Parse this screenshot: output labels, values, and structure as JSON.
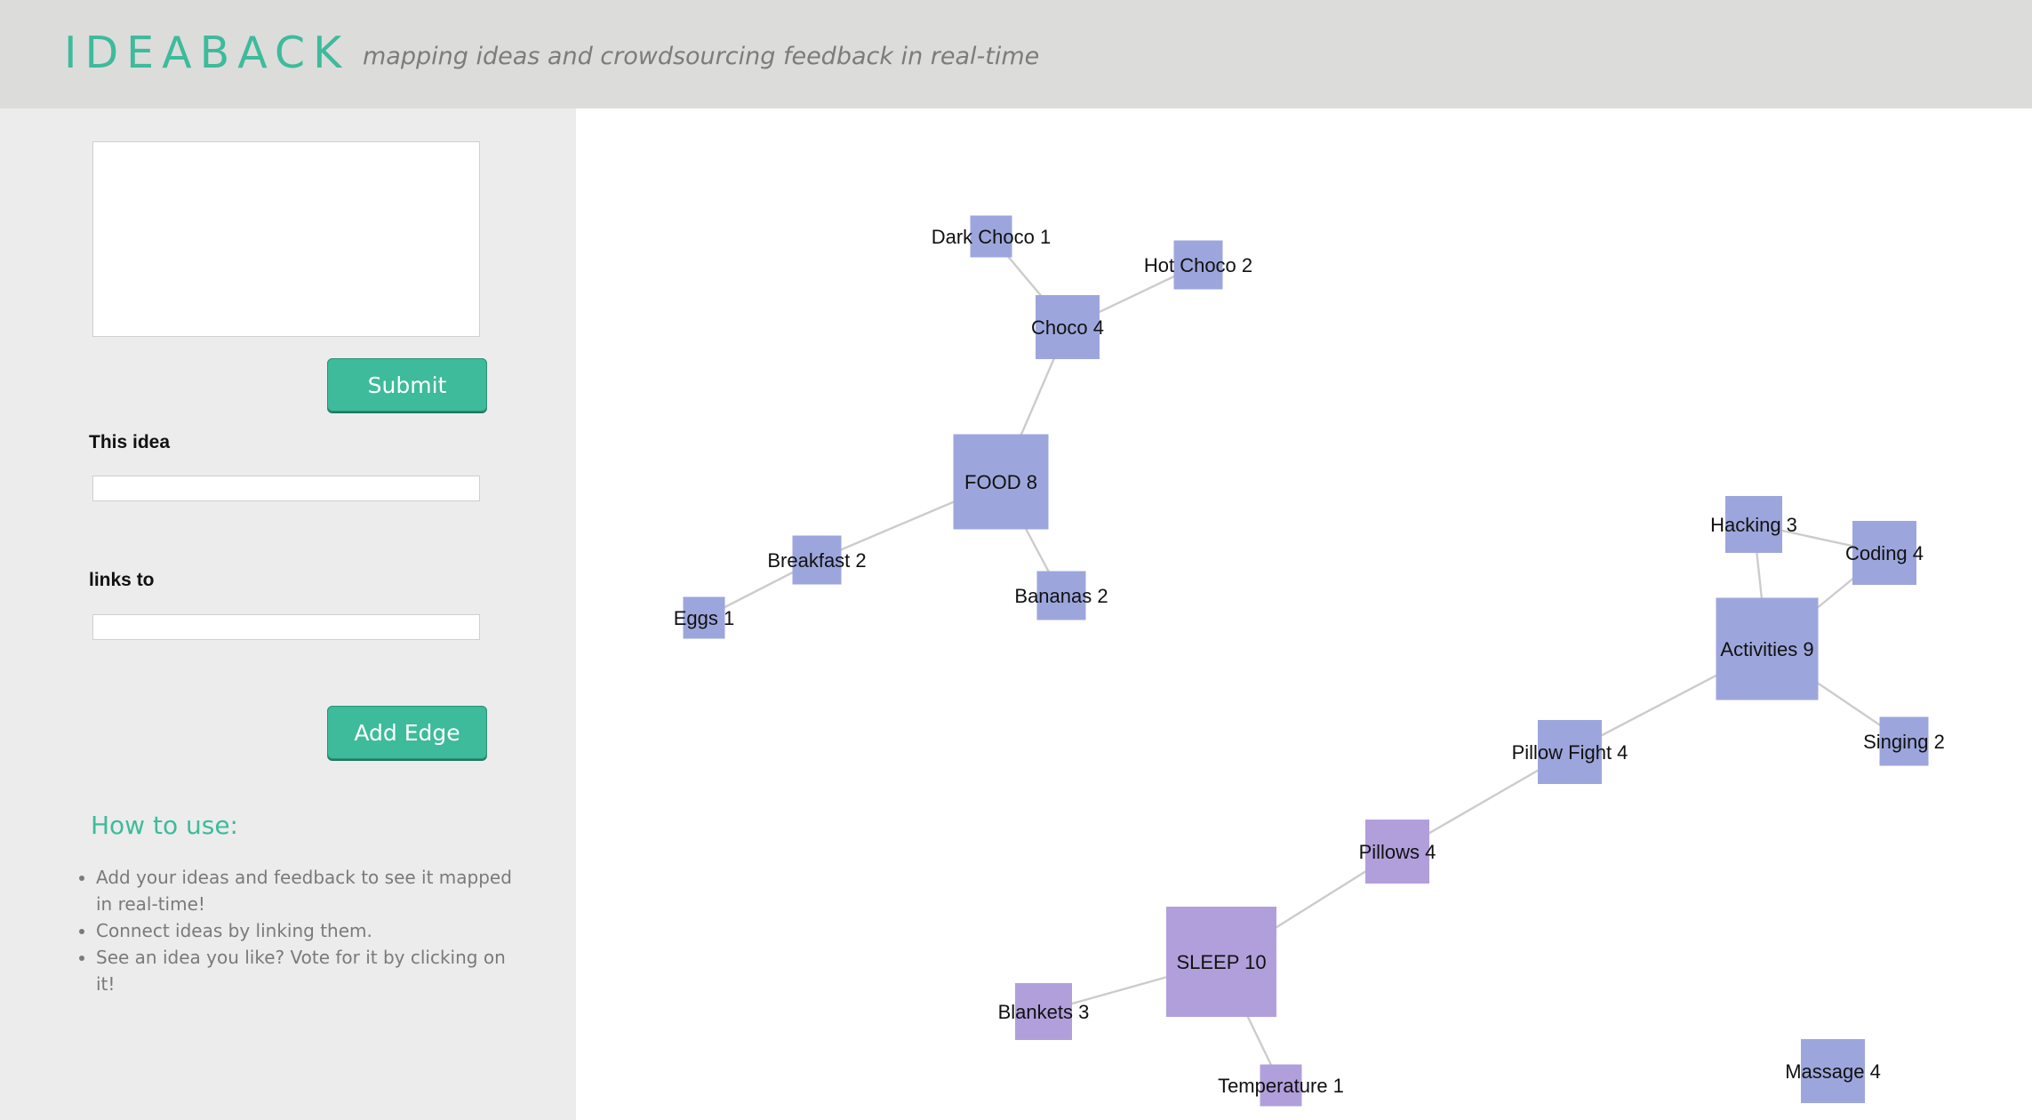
{
  "header": {
    "brand": "IDEABACK",
    "tagline": "mapping ideas and crowdsourcing feedback in real-time"
  },
  "sidebar": {
    "idea_text_value": "",
    "submit_label": "Submit",
    "this_idea_label": "This idea",
    "this_idea_value": "",
    "links_to_label": "links to",
    "links_to_value": "",
    "add_edge_label": "Add Edge",
    "howto_title": "How to use:",
    "howto_items": [
      "Add your ideas and feedback to see it mapped in real-time!",
      "Connect ideas by linking them.",
      "See an idea you like? Vote for it by clicking on it!"
    ]
  },
  "colors": {
    "accent": "#3dbb9b",
    "node_food_group": "#9da6dc",
    "node_sleep_group": "#b19fdc",
    "edge": "#cccccc"
  },
  "graph": {
    "nodes": [
      {
        "id": "food",
        "label": "FOOD 8",
        "votes": 8,
        "group": "food"
      },
      {
        "id": "choco",
        "label": "Choco 4",
        "votes": 4,
        "group": "food"
      },
      {
        "id": "darkchoco",
        "label": "Dark Choco 1",
        "votes": 1,
        "group": "food"
      },
      {
        "id": "hotchoco",
        "label": "Hot Choco 2",
        "votes": 2,
        "group": "food"
      },
      {
        "id": "breakfast",
        "label": "Breakfast 2",
        "votes": 2,
        "group": "food"
      },
      {
        "id": "eggs",
        "label": "Eggs 1",
        "votes": 1,
        "group": "food"
      },
      {
        "id": "bananas",
        "label": "Bananas 2",
        "votes": 2,
        "group": "food"
      },
      {
        "id": "activities",
        "label": "Activities 9",
        "votes": 9,
        "group": "food"
      },
      {
        "id": "hacking",
        "label": "Hacking 3",
        "votes": 3,
        "group": "food"
      },
      {
        "id": "coding",
        "label": "Coding 4",
        "votes": 4,
        "group": "food"
      },
      {
        "id": "singing",
        "label": "Singing 2",
        "votes": 2,
        "group": "food"
      },
      {
        "id": "pillowfight",
        "label": "Pillow Fight 4",
        "votes": 4,
        "group": "food"
      },
      {
        "id": "pillows",
        "label": "Pillows 4",
        "votes": 4,
        "group": "sleep"
      },
      {
        "id": "sleep",
        "label": "SLEEP 10",
        "votes": 10,
        "group": "sleep"
      },
      {
        "id": "blankets",
        "label": "Blankets 3",
        "votes": 3,
        "group": "sleep"
      },
      {
        "id": "temperature",
        "label": "Temperature 1",
        "votes": 1,
        "group": "sleep"
      },
      {
        "id": "massage",
        "label": "Massage 4",
        "votes": 4,
        "group": "food"
      }
    ],
    "edges": [
      [
        "darkchoco",
        "choco"
      ],
      [
        "hotchoco",
        "choco"
      ],
      [
        "choco",
        "food"
      ],
      [
        "food",
        "breakfast"
      ],
      [
        "breakfast",
        "eggs"
      ],
      [
        "food",
        "bananas"
      ],
      [
        "hacking",
        "coding"
      ],
      [
        "hacking",
        "activities"
      ],
      [
        "coding",
        "activities"
      ],
      [
        "activities",
        "singing"
      ],
      [
        "activities",
        "pillowfight"
      ],
      [
        "pillowfight",
        "pillows"
      ],
      [
        "pillows",
        "sleep"
      ],
      [
        "sleep",
        "blankets"
      ],
      [
        "sleep",
        "temperature"
      ]
    ]
  }
}
